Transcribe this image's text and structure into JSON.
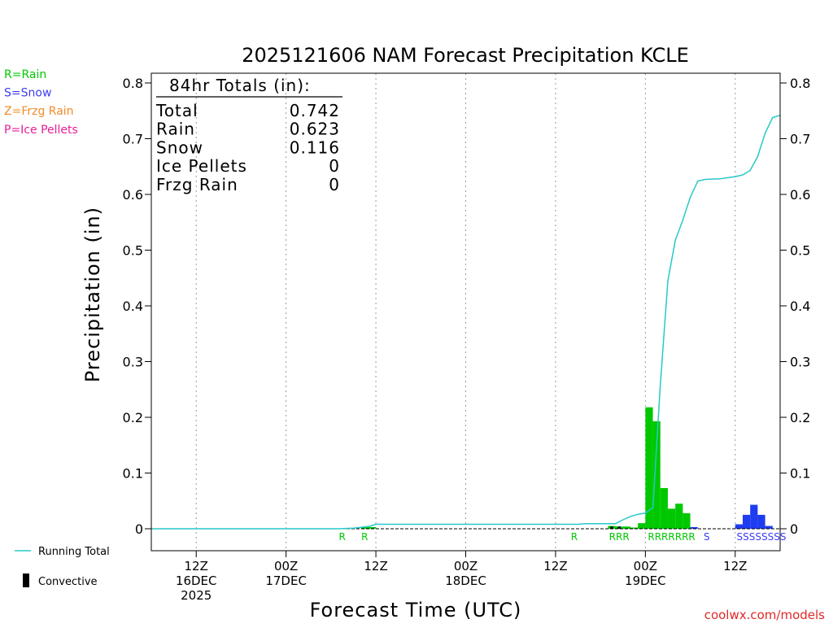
{
  "chart_data": {
    "type": "bar",
    "title": "2025121606 NAM Forecast Precipitation KCLE",
    "xlabel": "Forecast Time (UTC)",
    "ylabel": "Precipitation (in)",
    "ylim": [
      0,
      0.82
    ],
    "y_ticks": [
      0,
      0.1,
      0.2,
      0.3,
      0.4,
      0.5,
      0.6,
      0.7,
      0.8
    ],
    "y_tick_labels": [
      "0",
      "0.1",
      "0.2",
      "0.3",
      "0.4",
      "0.5",
      "0.6",
      "0.7",
      "0.8"
    ],
    "xlim": [
      0,
      84
    ],
    "x_ticks": [
      {
        "hour": 6,
        "line1": "12Z",
        "line2": "16DEC",
        "line3": "2025"
      },
      {
        "hour": 18,
        "line1": "00Z",
        "line2": "17DEC",
        "line3": ""
      },
      {
        "hour": 30,
        "line1": "12Z",
        "line2": "",
        "line3": ""
      },
      {
        "hour": 42,
        "line1": "00Z",
        "line2": "18DEC",
        "line3": ""
      },
      {
        "hour": 54,
        "line1": "12Z",
        "line2": "",
        "line3": ""
      },
      {
        "hour": 66,
        "line1": "00Z",
        "line2": "19DEC",
        "line3": ""
      },
      {
        "hour": 78,
        "line1": "12Z",
        "line2": "",
        "line3": ""
      }
    ],
    "grid": "vertical-dotted",
    "legend_left": [
      {
        "label": "R=Rain",
        "color": "#00c800"
      },
      {
        "label": "S=Snow",
        "color": "#3c3cf0"
      },
      {
        "label": "Z=Frzg Rain",
        "color": "#f08c28"
      },
      {
        "label": "P=Ice Pellets",
        "color": "#e61e96"
      }
    ],
    "legend_bottom": {
      "running_total_label": "Running Total",
      "convective_label": "Convective"
    },
    "totals_box": {
      "header": "84hr Totals (in):",
      "rows": [
        {
          "label": "Total",
          "value": "0.742"
        },
        {
          "label": "Rain",
          "value": "0.623"
        },
        {
          "label": "Snow",
          "value": "0.116"
        },
        {
          "label": "Ice Pellets",
          "value": "0"
        },
        {
          "label": "Frzg Rain",
          "value": "0"
        }
      ]
    },
    "series": [
      {
        "name": "Rain",
        "color": "#00c800",
        "bars": [
          {
            "hour": 29,
            "value": 0.003
          },
          {
            "hour": 30,
            "value": 0.003
          },
          {
            "hour": 62,
            "value": 0.005
          },
          {
            "hour": 63,
            "value": 0.004
          },
          {
            "hour": 64,
            "value": 0.004
          },
          {
            "hour": 65,
            "value": 0.002
          },
          {
            "hour": 66,
            "value": 0.01
          },
          {
            "hour": 67,
            "value": 0.218
          },
          {
            "hour": 68,
            "value": 0.193
          },
          {
            "hour": 69,
            "value": 0.073
          },
          {
            "hour": 70,
            "value": 0.036
          },
          {
            "hour": 71,
            "value": 0.045
          },
          {
            "hour": 72,
            "value": 0.028
          }
        ]
      },
      {
        "name": "Snow",
        "color": "#1e3cf0",
        "bars": [
          {
            "hour": 73,
            "value": 0.003
          },
          {
            "hour": 79,
            "value": 0.008
          },
          {
            "hour": 80,
            "value": 0.025
          },
          {
            "hour": 81,
            "value": 0.043
          },
          {
            "hour": 82,
            "value": 0.025
          },
          {
            "hour": 83,
            "value": 0.005
          }
        ]
      },
      {
        "name": "Convective",
        "color": "#000000",
        "bars": [
          {
            "hour": 62,
            "value": 0.004
          },
          {
            "hour": 63,
            "value": 0.004
          }
        ]
      }
    ],
    "running_total": {
      "color": "#28c8c8",
      "points": [
        [
          0,
          0
        ],
        [
          25,
          0
        ],
        [
          27,
          0.001
        ],
        [
          29,
          0.004
        ],
        [
          29.5,
          0.006
        ],
        [
          30,
          0.008
        ],
        [
          57,
          0.008
        ],
        [
          58,
          0.009
        ],
        [
          62,
          0.009
        ],
        [
          63,
          0.016
        ],
        [
          64,
          0.022
        ],
        [
          65,
          0.026
        ],
        [
          66,
          0.028
        ],
        [
          67,
          0.038
        ],
        [
          68,
          0.26
        ],
        [
          69,
          0.445
        ],
        [
          70,
          0.518
        ],
        [
          71,
          0.554
        ],
        [
          72,
          0.595
        ],
        [
          73,
          0.624
        ],
        [
          74,
          0.627
        ],
        [
          76,
          0.628
        ],
        [
          78,
          0.632
        ],
        [
          79,
          0.635
        ],
        [
          80,
          0.643
        ],
        [
          81,
          0.668
        ],
        [
          82,
          0.71
        ],
        [
          83,
          0.738
        ],
        [
          84,
          0.742
        ]
      ]
    },
    "type_labels": [
      {
        "hour": 25.5,
        "text": "R",
        "color": "#00c800"
      },
      {
        "hour": 28.5,
        "text": "R",
        "color": "#00c800"
      },
      {
        "hour": 56.5,
        "text": "R",
        "color": "#00c800"
      },
      {
        "hour": 62.5,
        "text": "RRR",
        "color": "#00c800"
      },
      {
        "hour": 69.5,
        "text": "RRRRRRR",
        "color": "#00c800"
      },
      {
        "hour": 74.2,
        "text": "S",
        "color": "#3c3cf0"
      },
      {
        "hour": 81.5,
        "text": "SSSSSSSS",
        "color": "#3c3cf0"
      }
    ]
  },
  "credit": "coolwx.com/models"
}
